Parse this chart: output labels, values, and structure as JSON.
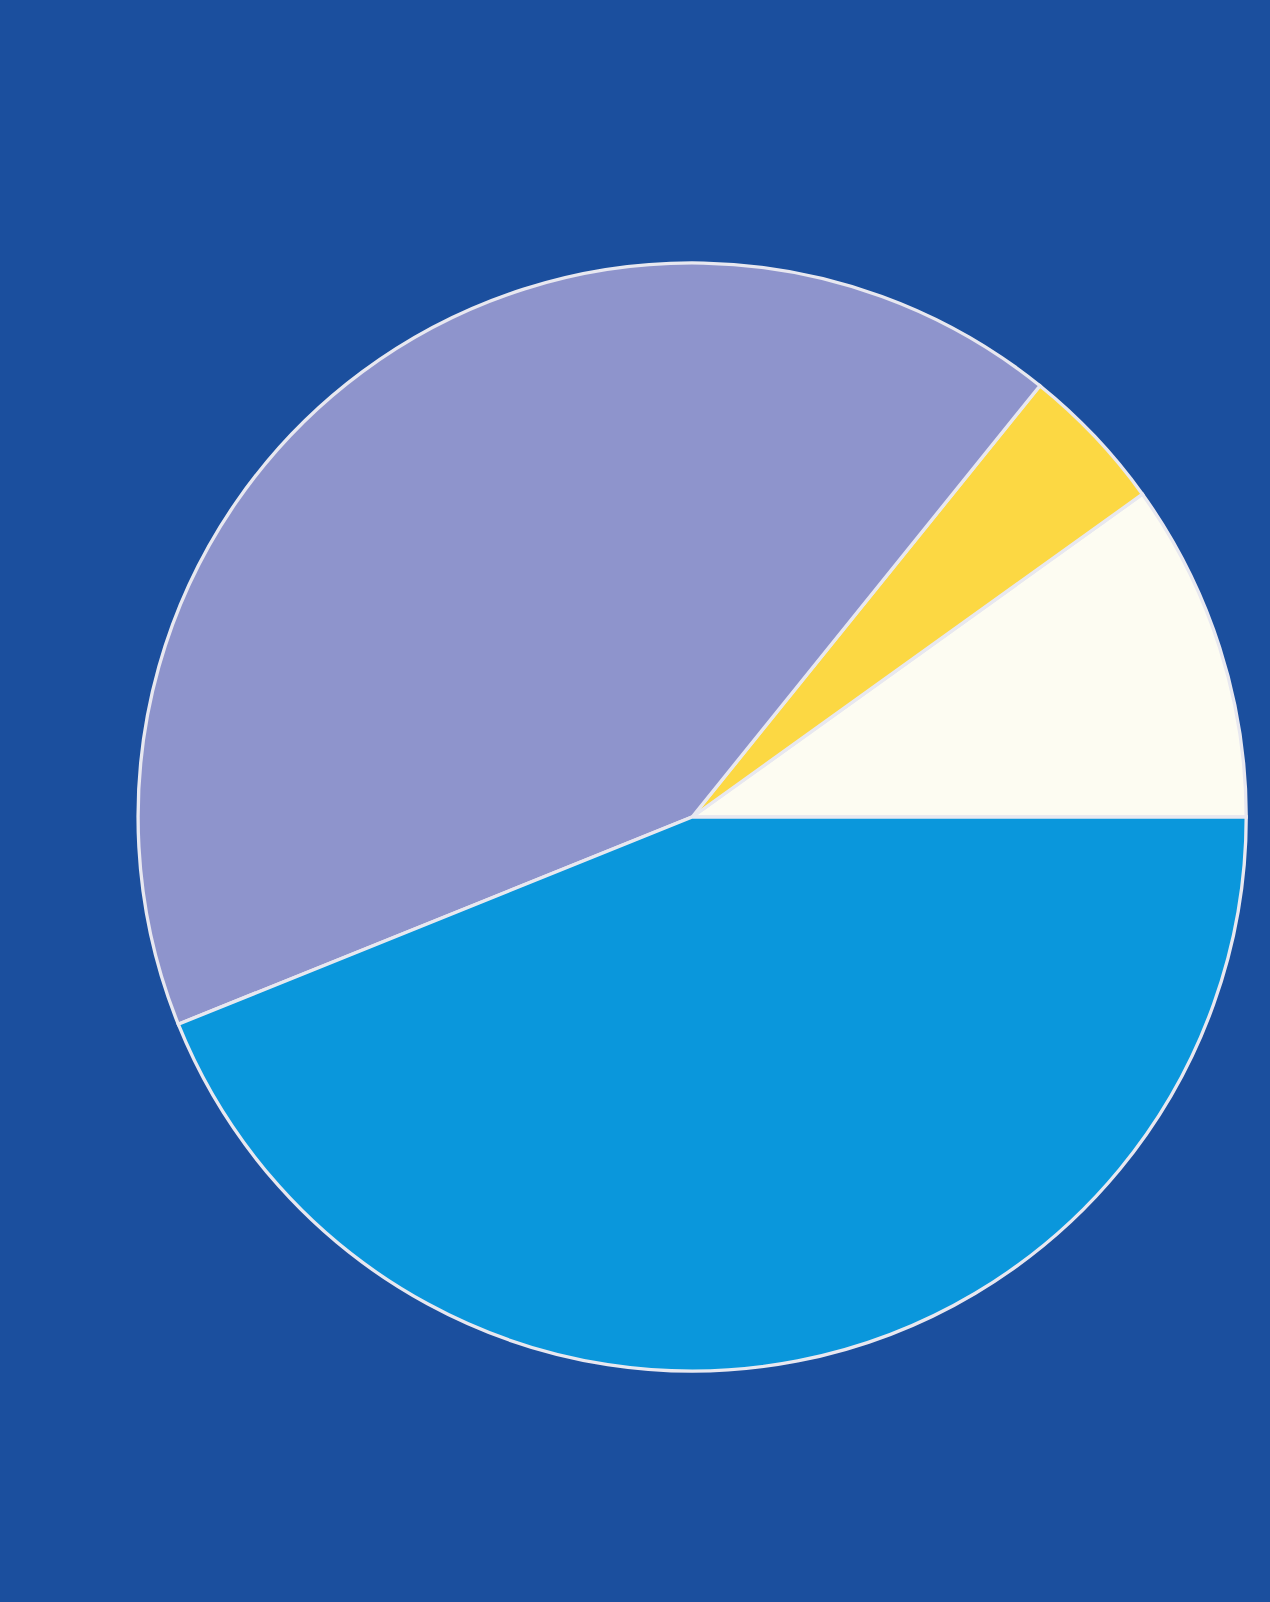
{
  "chart_data": {
    "type": "pie",
    "categories": [
      null,
      null,
      null,
      null
    ],
    "values": [
      9.9,
      4.3,
      41.9,
      43.9
    ],
    "colors": [
      "#fdfcf2",
      "#fcd843",
      "#8e94cc",
      "#0a97dc"
    ]
  }
}
